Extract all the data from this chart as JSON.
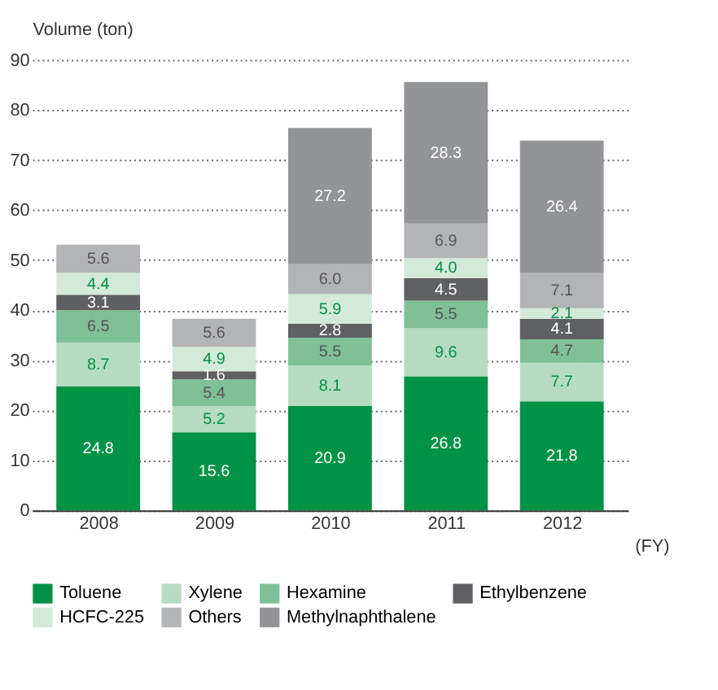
{
  "chart_data": {
    "type": "bar",
    "stacked": true,
    "ylabel": "Volume (ton)",
    "xlabel": "(FY)",
    "categories": [
      "2008",
      "2009",
      "2010",
      "2011",
      "2012"
    ],
    "series": [
      {
        "name": "Toluene",
        "color": "#009245",
        "values": [
          24.8,
          15.6,
          20.9,
          26.8,
          21.8
        ],
        "value_labels": [
          "24.8",
          "15.6",
          "20.9",
          "26.8",
          "21.8"
        ]
      },
      {
        "name": "Xylene",
        "color": "#b5dcc0",
        "values": [
          8.7,
          5.2,
          8.1,
          9.6,
          7.7
        ],
        "value_labels": [
          "8.7",
          "5.2",
          "8.1",
          "9.6",
          "7.7"
        ]
      },
      {
        "name": "Hexamine",
        "color": "#7fc096",
        "values": [
          6.5,
          5.4,
          5.5,
          5.5,
          4.7
        ],
        "value_labels": [
          "6.5",
          "5.4",
          "5.5",
          "5.5",
          "4.7"
        ]
      },
      {
        "name": "Ethylbenzene",
        "color": "#5f6062",
        "values": [
          3.1,
          1.6,
          2.8,
          4.5,
          4.1
        ],
        "value_labels": [
          "3.1",
          "1.6",
          "2.8",
          "4.5",
          "4.1"
        ]
      },
      {
        "name": "HCFC-225",
        "color": "#d3e9d9",
        "values": [
          4.4,
          4.9,
          5.9,
          4.0,
          2.1
        ],
        "value_labels": [
          "4.4",
          "4.9",
          "5.9",
          "4.0",
          "2.1"
        ]
      },
      {
        "name": "Others",
        "color": "#b3b4b6",
        "values": [
          5.6,
          5.6,
          6.0,
          6.9,
          7.1
        ],
        "value_labels": [
          "5.6",
          "5.6",
          "6.0",
          "6.9",
          "7.1"
        ]
      },
      {
        "name": "Methylnaphthalene",
        "color": "#939496",
        "values": [
          null,
          null,
          27.2,
          28.3,
          26.4
        ],
        "value_labels": [
          null,
          null,
          "27.2",
          "28.3",
          "26.4"
        ]
      }
    ],
    "ylim": [
      0,
      90
    ],
    "yticks": [
      0,
      10,
      20,
      30,
      40,
      50,
      60,
      70,
      80,
      90
    ],
    "grid": "y",
    "legend": "bottom"
  }
}
